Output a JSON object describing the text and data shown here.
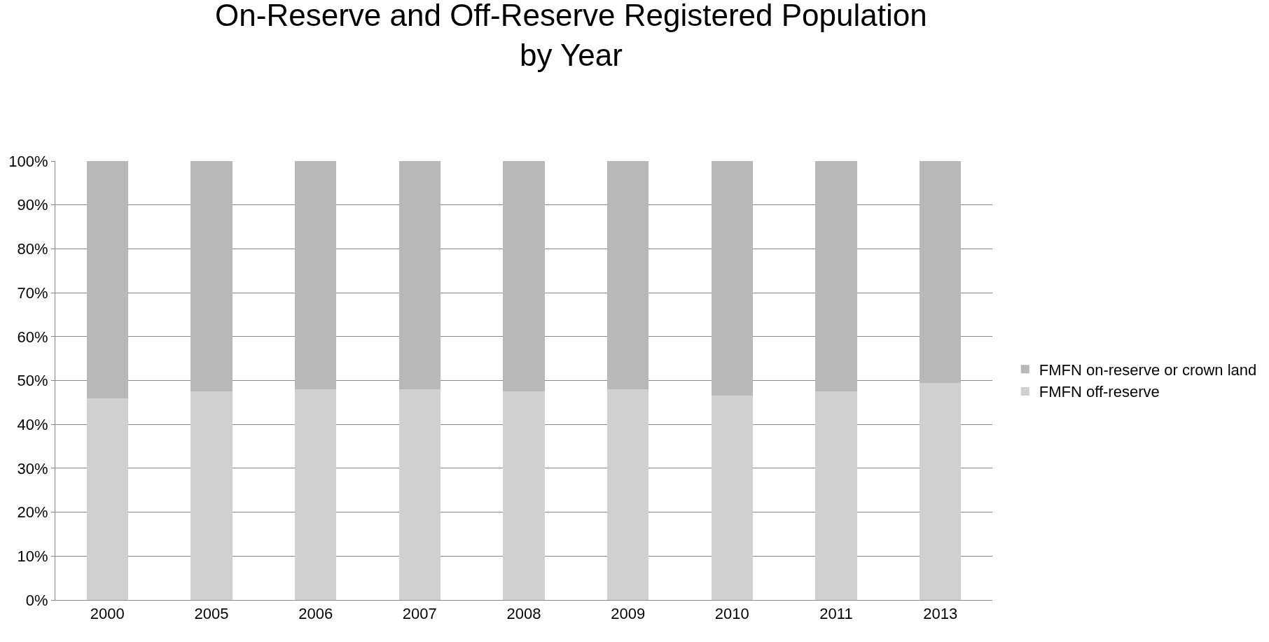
{
  "chart_data": {
    "type": "bar",
    "title": "On-Reserve and Off-Reserve Registered Population\nby Year",
    "categories": [
      "2000",
      "2005",
      "2006",
      "2007",
      "2008",
      "2009",
      "2010",
      "2011",
      "2013"
    ],
    "stacked": true,
    "series": [
      {
        "name": "FMFN off-reserve",
        "color": "#d0d0d0",
        "values": [
          46,
          47.5,
          48,
          48,
          47.5,
          48,
          46.5,
          47.5,
          49.5
        ]
      },
      {
        "name": "FMFN on-reserve or crown land",
        "color": "#b8b8b8",
        "values": [
          54,
          52.5,
          52,
          52,
          52.5,
          52,
          53.5,
          52.5,
          50.5
        ]
      }
    ],
    "ylim": [
      0,
      100
    ],
    "yticks": [
      {
        "value": 0,
        "label": "0%"
      },
      {
        "value": 10,
        "label": "10%"
      },
      {
        "value": 20,
        "label": "20%"
      },
      {
        "value": 30,
        "label": "30%"
      },
      {
        "value": 40,
        "label": "40%"
      },
      {
        "value": 50,
        "label": "50%"
      },
      {
        "value": 60,
        "label": "60%"
      },
      {
        "value": 70,
        "label": "70%"
      },
      {
        "value": 80,
        "label": "80%"
      },
      {
        "value": 90,
        "label": "90%"
      },
      {
        "value": 100,
        "label": "100%"
      }
    ],
    "grid": "y",
    "legend": "right"
  }
}
